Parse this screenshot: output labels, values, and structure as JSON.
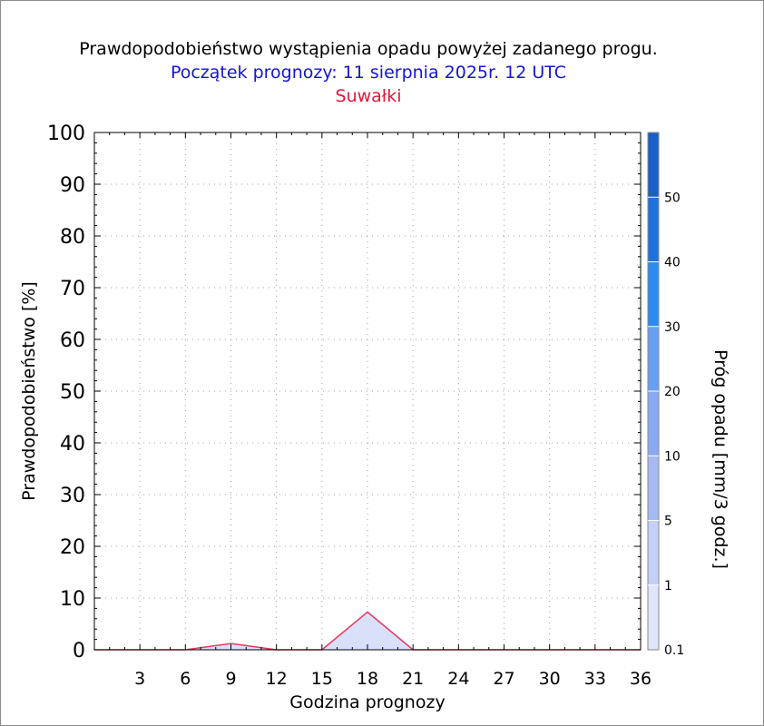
{
  "chart_data": {
    "type": "area",
    "title": "Prawdopodobieństwo wystąpienia opadu powyżej zadanego progu.",
    "subtitle": "Początek prognozy: 11 sierpnia 2025r. 12 UTC",
    "location": "Suwałki",
    "xlabel": "Godzina prognozy",
    "ylabel": "Prawdopodobieństwo [%]",
    "colorbar_label": "Próg opadu [mm/3 godz.]",
    "xlim": [
      0,
      36
    ],
    "ylim": [
      0,
      100
    ],
    "x_ticks": [
      "3",
      "6",
      "9",
      "12",
      "15",
      "18",
      "21",
      "24",
      "27",
      "30",
      "33",
      "36"
    ],
    "y_ticks": [
      "0",
      "10",
      "20",
      "30",
      "40",
      "50",
      "60",
      "70",
      "80",
      "90",
      "100"
    ],
    "grid": true,
    "series": [
      {
        "threshold": "0.1",
        "x": [
          0,
          3,
          6,
          9,
          12,
          15,
          18,
          21,
          24,
          27,
          30,
          33,
          36
        ],
        "values": [
          0,
          0,
          0,
          1.2,
          0,
          0,
          7.3,
          0,
          0,
          0,
          0,
          0,
          0
        ]
      }
    ],
    "colorbar": {
      "labels": [
        "0.1",
        "1",
        "5",
        "10",
        "20",
        "30",
        "40",
        "50"
      ],
      "levels": [
        0.1,
        1,
        5,
        10,
        20,
        30,
        40,
        50,
        60
      ],
      "colors": [
        "#e0e5fb",
        "#c4d0f7",
        "#a6b9f5",
        "#8aa9f3",
        "#66a0f4",
        "#2a8cf0",
        "#1e72dc",
        "#1a5ec8",
        "#1848b0"
      ]
    },
    "colors": {
      "outline": "#e8385a",
      "fill": "#d9e0fa"
    }
  }
}
